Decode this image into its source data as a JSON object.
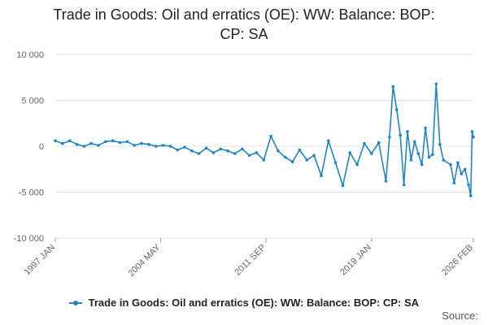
{
  "chart_data": {
    "type": "line",
    "title_lines": [
      "Trade in Goods: Oil and erratics (OE): WW: Balance: BOP:",
      "CP: SA"
    ],
    "xlabel": "",
    "ylabel": "",
    "ylim": [
      -10000,
      10000
    ],
    "y_ticks": [
      10000,
      5000,
      0,
      -5000,
      -10000
    ],
    "y_tick_labels": [
      "10 000",
      "5 000",
      "0",
      "-5 000",
      "-10 000"
    ],
    "x_range": [
      1997.0,
      2026.0833
    ],
    "x_ticks": [
      1997.0,
      2004.333,
      2011.667,
      2019.0,
      2026.0833
    ],
    "x_tick_labels": [
      "1997 JAN",
      "2004 MAY",
      "2011 SEP",
      "2019 JAN",
      "2026 FEB"
    ],
    "grid": true,
    "legend_position": "bottom",
    "series": [
      {
        "name": "Trade in Goods: Oil and erratics (OE): WW: Balance: BOP: CP: SA",
        "color": "#1f86c6",
        "points": [
          [
            1997.0,
            600
          ],
          [
            1997.5,
            300
          ],
          [
            1998.0,
            600
          ],
          [
            1998.5,
            200
          ],
          [
            1999.0,
            0
          ],
          [
            1999.5,
            300
          ],
          [
            2000.0,
            100
          ],
          [
            2000.5,
            500
          ],
          [
            2001.0,
            600
          ],
          [
            2001.5,
            400
          ],
          [
            2002.0,
            500
          ],
          [
            2002.5,
            100
          ],
          [
            2003.0,
            300
          ],
          [
            2003.5,
            200
          ],
          [
            2004.0,
            0
          ],
          [
            2004.5,
            100
          ],
          [
            2005.0,
            0
          ],
          [
            2005.5,
            -400
          ],
          [
            2006.0,
            -100
          ],
          [
            2006.5,
            -500
          ],
          [
            2007.0,
            -800
          ],
          [
            2007.5,
            -200
          ],
          [
            2008.0,
            -700
          ],
          [
            2008.5,
            -300
          ],
          [
            2009.0,
            -500
          ],
          [
            2009.5,
            -800
          ],
          [
            2010.0,
            -300
          ],
          [
            2010.5,
            -1000
          ],
          [
            2011.0,
            -700
          ],
          [
            2011.5,
            -1500
          ],
          [
            2012.0,
            1100
          ],
          [
            2012.5,
            -500
          ],
          [
            2013.0,
            -1200
          ],
          [
            2013.5,
            -1700
          ],
          [
            2014.0,
            -400
          ],
          [
            2014.5,
            -1500
          ],
          [
            2015.0,
            -1000
          ],
          [
            2015.5,
            -3200
          ],
          [
            2016.0,
            600
          ],
          [
            2016.5,
            -1800
          ],
          [
            2017.0,
            -4300
          ],
          [
            2017.5,
            -700
          ],
          [
            2018.0,
            -2000
          ],
          [
            2018.5,
            300
          ],
          [
            2019.0,
            -800
          ],
          [
            2019.5,
            400
          ],
          [
            2020.0,
            -3800
          ],
          [
            2020.25,
            1000
          ],
          [
            2020.5,
            6500
          ],
          [
            2020.75,
            4000
          ],
          [
            2021.0,
            1200
          ],
          [
            2021.25,
            -4200
          ],
          [
            2021.5,
            1600
          ],
          [
            2021.75,
            -1500
          ],
          [
            2022.0,
            500
          ],
          [
            2022.25,
            -800
          ],
          [
            2022.5,
            -2000
          ],
          [
            2022.75,
            2000
          ],
          [
            2023.0,
            -1200
          ],
          [
            2023.25,
            -900
          ],
          [
            2023.5,
            6800
          ],
          [
            2023.75,
            200
          ],
          [
            2024.0,
            -1500
          ],
          [
            2024.5,
            -2000
          ],
          [
            2024.75,
            -4000
          ],
          [
            2025.0,
            -1800
          ],
          [
            2025.25,
            -3000
          ],
          [
            2025.5,
            -2500
          ],
          [
            2025.75,
            -4200
          ],
          [
            2025.9,
            -5400
          ],
          [
            2026.0,
            1600
          ],
          [
            2026.0833,
            1000
          ]
        ]
      }
    ]
  },
  "legend_label": "Trade in Goods: Oil and erratics (OE): WW: Balance: BOP: CP: SA",
  "source_label": "Source:"
}
